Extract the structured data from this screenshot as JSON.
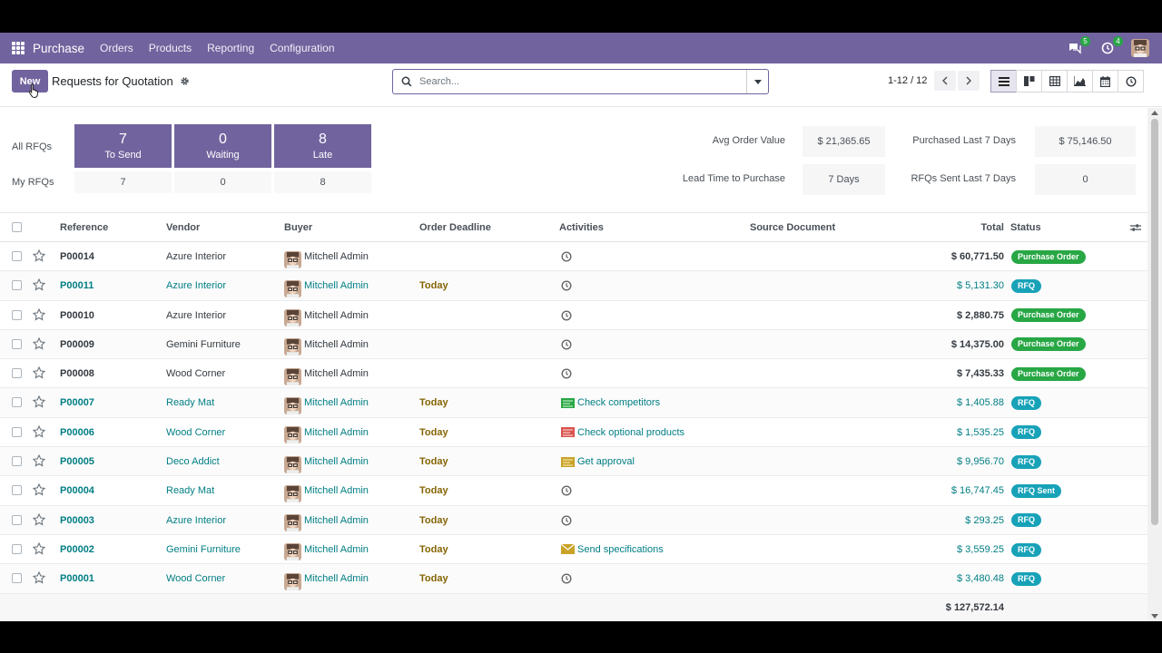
{
  "nav": {
    "app_name": "Purchase",
    "menus": [
      "Orders",
      "Products",
      "Reporting",
      "Configuration"
    ],
    "messages_count": "5",
    "activities_count": "4"
  },
  "control": {
    "new_label": "New",
    "breadcrumb": "Requests for Quotation",
    "search_placeholder": "Search...",
    "pager": "1-12 / 12"
  },
  "dashboard": {
    "all_rfqs_label": "All RFQs",
    "my_rfqs_label": "My RFQs",
    "tiles": [
      {
        "count": "7",
        "label": "To Send",
        "mine": "7"
      },
      {
        "count": "0",
        "label": "Waiting",
        "mine": "0"
      },
      {
        "count": "8",
        "label": "Late",
        "mine": "8"
      }
    ],
    "kpis": [
      {
        "label": "Avg Order Value",
        "value": "$ 21,365.65"
      },
      {
        "label": "Lead Time to Purchase",
        "value": "7 Days"
      },
      {
        "label": "Purchased Last 7 Days",
        "value": "$ 75,146.50"
      },
      {
        "label": "RFQs Sent Last 7 Days",
        "value": "0"
      }
    ]
  },
  "table": {
    "headers": {
      "reference": "Reference",
      "vendor": "Vendor",
      "buyer": "Buyer",
      "deadline": "Order Deadline",
      "activities": "Activities",
      "source": "Source Document",
      "total": "Total",
      "status": "Status"
    },
    "rows": [
      {
        "ref": "P00014",
        "vendor": "Azure Interior",
        "buyer": "Mitchell Admin",
        "deadline": "",
        "activity": "",
        "activity_icon": "clock-icon",
        "total": "$ 60,771.50",
        "status": "Purchase Order",
        "kind": "po"
      },
      {
        "ref": "P00011",
        "vendor": "Azure Interior",
        "buyer": "Mitchell Admin",
        "deadline": "Today",
        "activity": "",
        "activity_icon": "clock-icon",
        "total": "$ 5,131.30",
        "status": "RFQ",
        "kind": "rfq"
      },
      {
        "ref": "P00010",
        "vendor": "Azure Interior",
        "buyer": "Mitchell Admin",
        "deadline": "",
        "activity": "",
        "activity_icon": "clock-icon",
        "total": "$ 2,880.75",
        "status": "Purchase Order",
        "kind": "po"
      },
      {
        "ref": "P00009",
        "vendor": "Gemini Furniture",
        "buyer": "Mitchell Admin",
        "deadline": "",
        "activity": "",
        "activity_icon": "clock-icon",
        "total": "$ 14,375.00",
        "status": "Purchase Order",
        "kind": "po"
      },
      {
        "ref": "P00008",
        "vendor": "Wood Corner",
        "buyer": "Mitchell Admin",
        "deadline": "",
        "activity": "",
        "activity_icon": "clock-icon",
        "total": "$ 7,435.33",
        "status": "Purchase Order",
        "kind": "po"
      },
      {
        "ref": "P00007",
        "vendor": "Ready Mat",
        "buyer": "Mitchell Admin",
        "deadline": "Today",
        "activity": "Check competitors",
        "activity_icon": "task-green-icon",
        "total": "$ 1,405.88",
        "status": "RFQ",
        "kind": "rfq"
      },
      {
        "ref": "P00006",
        "vendor": "Wood Corner",
        "buyer": "Mitchell Admin",
        "deadline": "Today",
        "activity": "Check optional products",
        "activity_icon": "task-red-icon",
        "total": "$ 1,535.25",
        "status": "RFQ",
        "kind": "rfq"
      },
      {
        "ref": "P00005",
        "vendor": "Deco Addict",
        "buyer": "Mitchell Admin",
        "deadline": "Today",
        "activity": "Get approval",
        "activity_icon": "task-yellow-icon",
        "total": "$ 9,956.70",
        "status": "RFQ",
        "kind": "rfq"
      },
      {
        "ref": "P00004",
        "vendor": "Ready Mat",
        "buyer": "Mitchell Admin",
        "deadline": "Today",
        "activity": "",
        "activity_icon": "clock-icon",
        "total": "$ 16,747.45",
        "status": "RFQ Sent",
        "kind": "rfq"
      },
      {
        "ref": "P00003",
        "vendor": "Azure Interior",
        "buyer": "Mitchell Admin",
        "deadline": "Today",
        "activity": "",
        "activity_icon": "clock-icon",
        "total": "$ 293.25",
        "status": "RFQ",
        "kind": "rfq"
      },
      {
        "ref": "P00002",
        "vendor": "Gemini Furniture",
        "buyer": "Mitchell Admin",
        "deadline": "Today",
        "activity": "Send specifications",
        "activity_icon": "envelope-icon",
        "total": "$ 3,559.25",
        "status": "RFQ",
        "kind": "rfq"
      },
      {
        "ref": "P00001",
        "vendor": "Wood Corner",
        "buyer": "Mitchell Admin",
        "deadline": "Today",
        "activity": "",
        "activity_icon": "clock-icon",
        "total": "$ 3,480.48",
        "status": "RFQ",
        "kind": "rfq"
      }
    ],
    "grand_total": "$ 127,572.14"
  },
  "colors": {
    "brand": "#71639e",
    "link": "#017e84",
    "po_badge": "#28a745",
    "rfq_badge": "#17a2b8",
    "deadline": "#856404"
  }
}
